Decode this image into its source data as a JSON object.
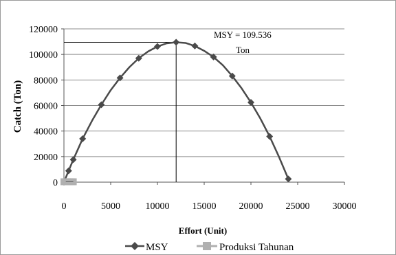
{
  "chart_data": {
    "type": "line",
    "xlabel": "Effort (Unit)",
    "ylabel": "Catch (Ton)",
    "xlim": [
      0,
      30000
    ],
    "ylim": [
      0,
      120000
    ],
    "x_ticks": [
      0,
      5000,
      10000,
      15000,
      20000,
      25000,
      30000
    ],
    "y_ticks": [
      0,
      20000,
      40000,
      60000,
      80000,
      100000,
      120000
    ],
    "grid": "horizontal",
    "legend_position": "bottom",
    "series": [
      {
        "name": "MSY",
        "color": "#4a4a4a",
        "marker": "diamond",
        "x": [
          0,
          500,
          1000,
          2000,
          4000,
          6000,
          8000,
          10000,
          12000,
          14000,
          16000,
          18000,
          20000,
          22000,
          24000
        ],
        "y": [
          0,
          8900,
          17600,
          34000,
          60600,
          81600,
          97000,
          106200,
          109536,
          106600,
          98000,
          83100,
          62400,
          35800,
          2500
        ],
        "curve_x": [
          0,
          500,
          1000,
          2000,
          3000,
          4000,
          5000,
          6000,
          7000,
          8000,
          9000,
          10000,
          11000,
          12000,
          13000,
          14000,
          15000,
          16000,
          17000,
          18000,
          19000,
          20000,
          21000,
          22000,
          23000,
          24000
        ],
        "curve_y": [
          0,
          8900,
          17600,
          34000,
          48000,
          60600,
          72000,
          81600,
          90000,
          97000,
          102300,
          106200,
          108700,
          109536,
          109000,
          106600,
          102800,
          98000,
          91500,
          83100,
          73500,
          62400,
          49900,
          35800,
          19800,
          2500
        ]
      },
      {
        "name": "Produksi Tahunan",
        "color": "#b0b0b0",
        "marker": "square",
        "x": [
          0,
          200,
          400,
          600,
          800,
          1000
        ],
        "y": [
          300,
          300,
          300,
          300,
          300,
          300
        ]
      }
    ],
    "annotation": {
      "line1": "MSY = 109.536",
      "line2": "Ton",
      "x": 12000,
      "y": 109536
    }
  }
}
